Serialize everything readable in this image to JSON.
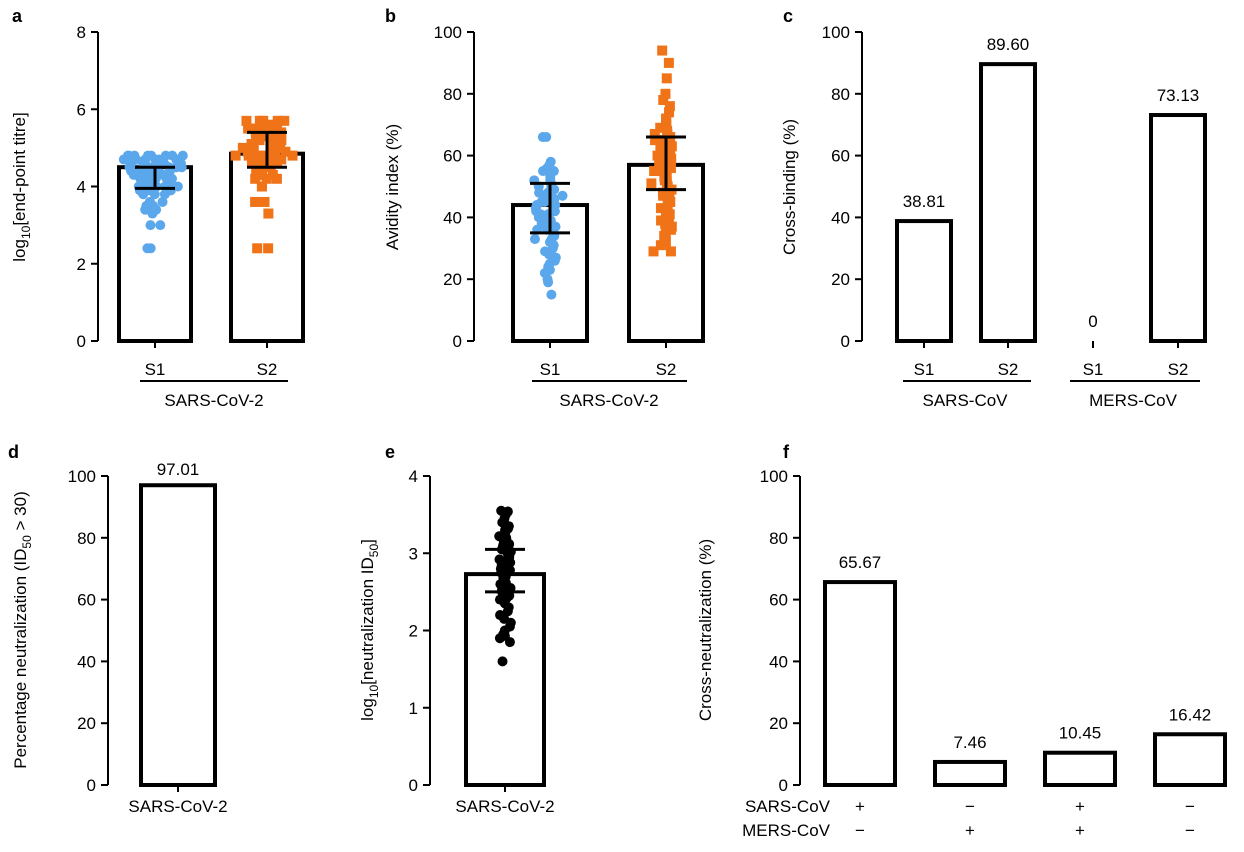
{
  "chart_data": [
    {
      "panel": "a",
      "type": "bar",
      "ylabel": "log10[end-point titre]",
      "ylim": [
        0,
        8
      ],
      "yticks": [
        0,
        2,
        4,
        6,
        8
      ],
      "categories": [
        "S1",
        "S2"
      ],
      "group_label": "SARS-CoV-2",
      "values": [
        4.5,
        4.85
      ],
      "error": [
        [
          3.95,
          4.5
        ],
        [
          4.5,
          5.4
        ]
      ],
      "colors": [
        "#5aa7ec",
        "#f07318"
      ],
      "points": [
        [
          4.8,
          4.8,
          4.8,
          4.8,
          4.8,
          4.8,
          4.8,
          4.8,
          4.7,
          4.7,
          4.7,
          4.7,
          4.7,
          4.7,
          4.6,
          4.6,
          4.6,
          4.6,
          4.6,
          4.5,
          4.5,
          4.5,
          4.5,
          4.5,
          4.5,
          4.5,
          4.4,
          4.4,
          4.4,
          4.4,
          4.3,
          4.3,
          4.3,
          4.3,
          4.2,
          4.2,
          4.2,
          4.2,
          4.2,
          4.1,
          4.1,
          4.1,
          4.0,
          4.0,
          4.0,
          4.0,
          4.0,
          3.9,
          3.9,
          3.9,
          3.9,
          3.8,
          3.8,
          3.8,
          3.6,
          3.6,
          3.6,
          3.5,
          3.5,
          3.4,
          3.4,
          3.3,
          3.0,
          3.0,
          2.4,
          2.4
        ],
        [
          5.7,
          5.7,
          5.7,
          5.7,
          5.7,
          5.6,
          5.6,
          5.6,
          5.5,
          5.5,
          5.5,
          5.5,
          5.4,
          5.4,
          5.4,
          5.3,
          5.3,
          5.3,
          5.2,
          5.2,
          5.2,
          5.1,
          5.1,
          5.1,
          5.0,
          5.0,
          5.0,
          5.0,
          4.9,
          4.9,
          4.9,
          4.9,
          4.9,
          4.8,
          4.8,
          4.8,
          4.8,
          4.8,
          4.8,
          4.7,
          4.7,
          4.7,
          4.6,
          4.6,
          4.6,
          4.5,
          4.5,
          4.4,
          4.4,
          4.3,
          4.3,
          4.2,
          4.2,
          4.2,
          4.0,
          4.0,
          3.6,
          3.6,
          3.3,
          2.4,
          2.4
        ]
      ]
    },
    {
      "panel": "b",
      "type": "bar",
      "ylabel": "Avidity index (%)",
      "ylim": [
        0,
        100
      ],
      "yticks": [
        0,
        20,
        40,
        60,
        80,
        100
      ],
      "categories": [
        "S1",
        "S2"
      ],
      "group_label": "SARS-CoV-2",
      "values": [
        44,
        57
      ],
      "error": [
        [
          35,
          51
        ],
        [
          49,
          66
        ]
      ],
      "colors": [
        "#5aa7ec",
        "#f07318"
      ],
      "points": [
        [
          66,
          66,
          58,
          57,
          56,
          55,
          55,
          54,
          53,
          52,
          52,
          51,
          50,
          50,
          49,
          48,
          48,
          47,
          47,
          47,
          46,
          46,
          45,
          45,
          44,
          44,
          43,
          43,
          42,
          42,
          41,
          41,
          40,
          40,
          39,
          38,
          38,
          37,
          36,
          36,
          35,
          34,
          33,
          33,
          32,
          31,
          30,
          29,
          28,
          27,
          26,
          25,
          24,
          23,
          22,
          22,
          20,
          19,
          15
        ],
        [
          94,
          90,
          85,
          80,
          78,
          76,
          74,
          72,
          71,
          70,
          69,
          68,
          67,
          67,
          66,
          65,
          65,
          64,
          63,
          62,
          62,
          61,
          60,
          60,
          59,
          58,
          58,
          57,
          56,
          55,
          55,
          54,
          53,
          52,
          51,
          51,
          50,
          49,
          48,
          47,
          46,
          45,
          44,
          43,
          42,
          41,
          40,
          39,
          38,
          37,
          36,
          35,
          34,
          32,
          31,
          29,
          29
        ]
      ]
    },
    {
      "panel": "c",
      "type": "bar",
      "ylabel": "Cross-binding (%)",
      "ylim": [
        0,
        100
      ],
      "yticks": [
        0,
        20,
        40,
        60,
        80,
        100
      ],
      "categories": [
        "S1",
        "S2",
        "S1",
        "S2"
      ],
      "groups": [
        "SARS-CoV",
        "MERS-CoV"
      ],
      "values": [
        38.81,
        89.6,
        0,
        73.13
      ],
      "data_labels": [
        "38.81",
        "89.60",
        "0",
        "73.13"
      ]
    },
    {
      "panel": "d",
      "type": "bar",
      "ylabel": "Percentage neutralization (ID50 > 30)",
      "ylim": [
        0,
        100
      ],
      "yticks": [
        0,
        20,
        40,
        60,
        80,
        100
      ],
      "categories": [
        "SARS-CoV-2"
      ],
      "values": [
        97.01
      ],
      "data_labels": [
        "97.01"
      ]
    },
    {
      "panel": "e",
      "type": "bar",
      "ylabel": "log10[neutralization ID50]",
      "ylim": [
        0,
        4
      ],
      "yticks": [
        0,
        1,
        2,
        3,
        4
      ],
      "categories": [
        "SARS-CoV-2"
      ],
      "values": [
        2.73
      ],
      "error": [
        [
          2.5,
          3.05
        ]
      ],
      "colors": [
        "#000000"
      ],
      "points": [
        [
          3.55,
          3.54,
          3.5,
          3.45,
          3.4,
          3.35,
          3.32,
          3.3,
          3.28,
          3.25,
          3.22,
          3.2,
          3.18,
          3.15,
          3.12,
          3.1,
          3.08,
          3.05,
          3.02,
          3.0,
          2.98,
          2.95,
          2.92,
          2.9,
          2.88,
          2.85,
          2.82,
          2.8,
          2.78,
          2.75,
          2.72,
          2.7,
          2.68,
          2.65,
          2.62,
          2.6,
          2.58,
          2.55,
          2.52,
          2.5,
          2.48,
          2.45,
          2.42,
          2.4,
          2.35,
          2.3,
          2.25,
          2.2,
          2.15,
          2.1,
          2.05,
          2.0,
          1.95,
          1.93,
          1.9,
          1.85,
          1.6
        ]
      ]
    },
    {
      "panel": "f",
      "type": "bar",
      "ylabel": "Cross-neutralization (%)",
      "ylim": [
        0,
        100
      ],
      "yticks": [
        0,
        20,
        40,
        60,
        80,
        100
      ],
      "row_labels": [
        "SARS-CoV",
        "MERS-CoV"
      ],
      "rows": [
        [
          "+",
          "−",
          "+",
          "−"
        ],
        [
          "−",
          "+",
          "+",
          "−"
        ]
      ],
      "values": [
        65.67,
        7.46,
        10.45,
        16.42
      ],
      "data_labels": [
        "65.67",
        "7.46",
        "10.45",
        "16.42"
      ]
    }
  ]
}
